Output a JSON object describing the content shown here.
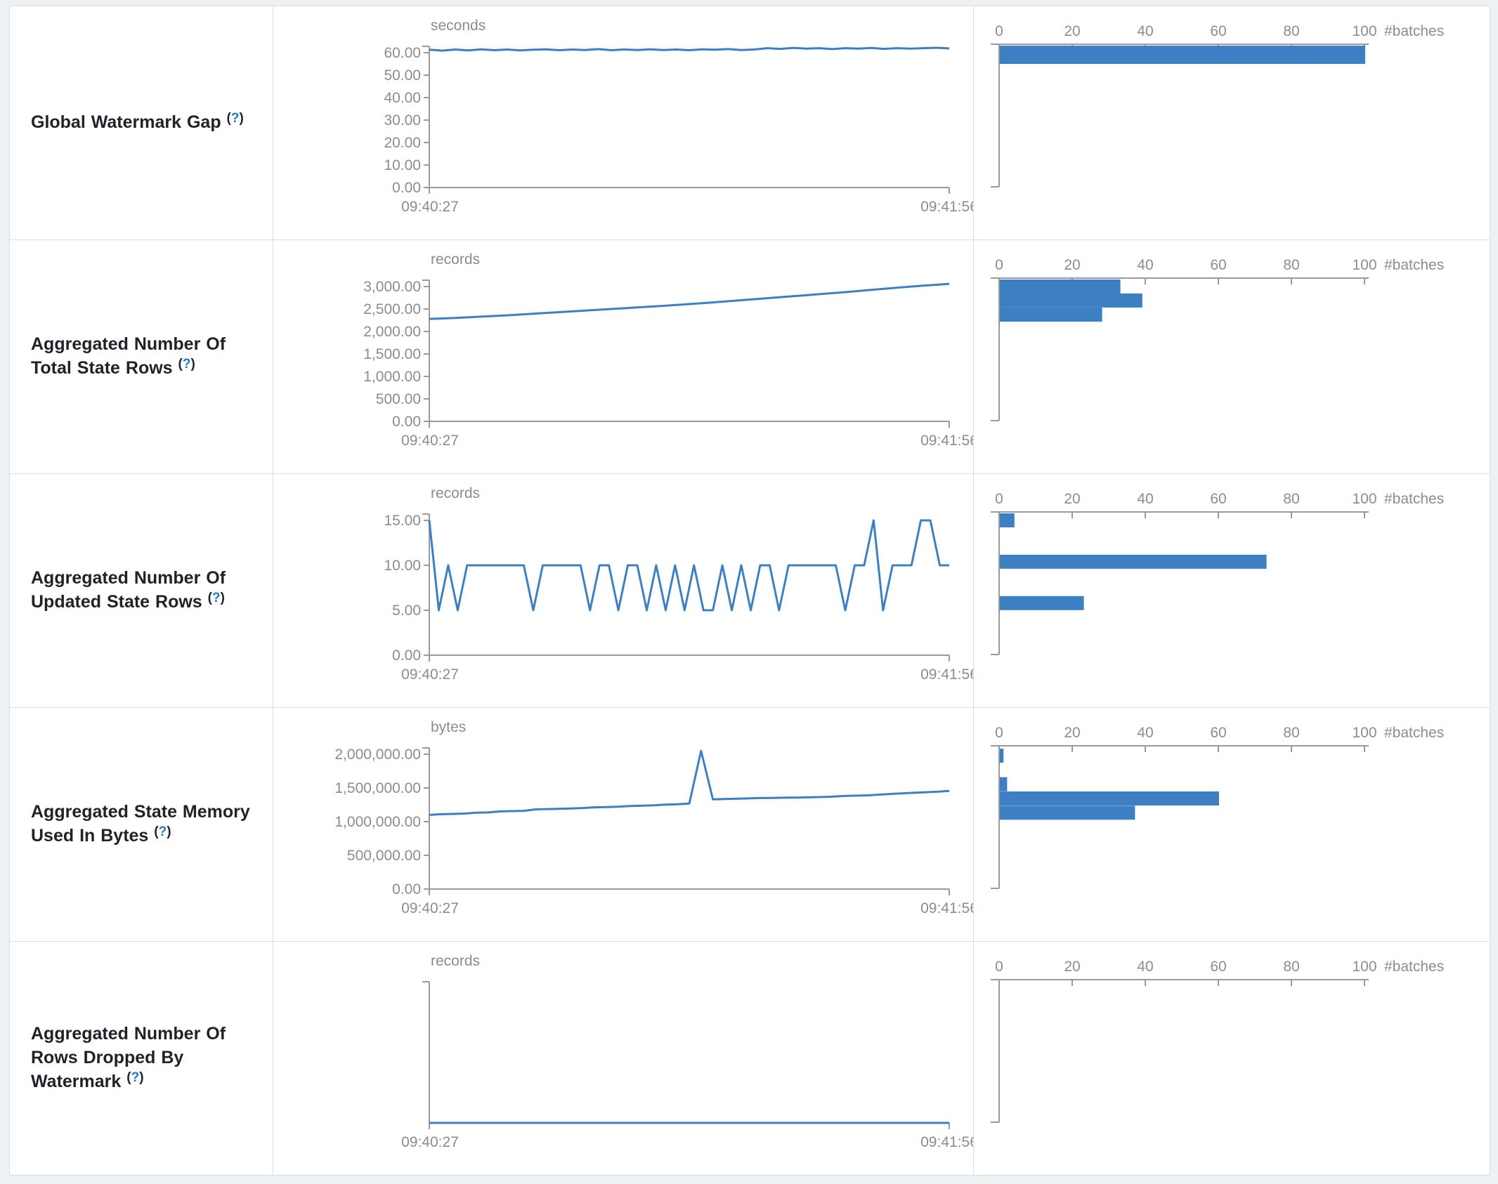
{
  "page": {
    "accent_blue": "#3c80c3",
    "axis_grey": "#9a9a9a",
    "text_grey": "#8c8c90",
    "label_color": "#1f2328",
    "help_color": "#2079c7",
    "border_color": "#d9dde1",
    "cell_bg": "#ffffff",
    "outer_bg": "#eef1f4"
  },
  "x_time_labels": [
    "09:40:27",
    "09:41:56"
  ],
  "histogram_axis": {
    "tick_labels": [
      "0",
      "20",
      "40",
      "60",
      "80",
      "100"
    ],
    "axis_label": "#batches",
    "max": 100
  },
  "chart_data": [
    {
      "type": "line+histogram",
      "title": "Global Watermark Gap",
      "help": {
        "open": "(",
        "q": "?",
        "close": ")"
      },
      "unit": "seconds",
      "y_tick_labels": [
        "60.00",
        "50.00",
        "40.00",
        "30.00",
        "20.00",
        "10.00",
        "0.00"
      ],
      "y_top_value": 60,
      "x_range": [
        "09:40:27",
        "09:41:56"
      ],
      "line_values": [
        61.3,
        60.9,
        61.4,
        61.0,
        61.5,
        61.1,
        61.4,
        61.0,
        61.3,
        61.5,
        61.1,
        61.4,
        61.2,
        61.6,
        61.1,
        61.4,
        61.2,
        61.5,
        61.2,
        61.4,
        61.1,
        61.5,
        61.3,
        61.6,
        61.2,
        61.4,
        62.0,
        61.7,
        62.1,
        61.8,
        62.0,
        61.6,
        62.0,
        61.8,
        62.1,
        61.7,
        62.0,
        61.8,
        62.0,
        62.2,
        61.9
      ],
      "histogram_bars": [
        {
          "count": 100,
          "bin_top_frac": 0.01,
          "bin_h": 26
        }
      ]
    },
    {
      "type": "line+histogram",
      "title": "Aggregated Number Of Total State Rows",
      "help": {
        "open": "(",
        "q": "?",
        "close": ")"
      },
      "unit": "records",
      "y_tick_labels": [
        "3,000.00",
        "2,500.00",
        "2,000.00",
        "1,500.00",
        "1,000.00",
        "500.00",
        "0.00"
      ],
      "y_top_value": 3000,
      "x_range": [
        "09:40:27",
        "09:41:56"
      ],
      "line_values": [
        2280,
        2300,
        2330,
        2360,
        2395,
        2430,
        2465,
        2500,
        2535,
        2570,
        2610,
        2650,
        2695,
        2740,
        2785,
        2830,
        2875,
        2925,
        2975,
        3020,
        3060
      ],
      "histogram_bars": [
        {
          "count": 33,
          "bin_top_frac": 0.01,
          "bin_h": 20
        },
        {
          "count": 39,
          "bin_top_frac": 0.108,
          "bin_h": 20
        },
        {
          "count": 28,
          "bin_top_frac": 0.207,
          "bin_h": 20
        }
      ]
    },
    {
      "type": "line+histogram",
      "title": "Aggregated Number Of Updated State Rows",
      "help": {
        "open": "(",
        "q": "?",
        "close": ")"
      },
      "unit": "records",
      "y_tick_labels": [
        "15.00",
        "10.00",
        "5.00",
        "0.00"
      ],
      "y_top_value": 15,
      "x_range": [
        "09:40:27",
        "09:41:56"
      ],
      "line_values": [
        15,
        5,
        10,
        5,
        10,
        10,
        10,
        10,
        10,
        10,
        10,
        5,
        10,
        10,
        10,
        10,
        10,
        5,
        10,
        10,
        5,
        10,
        10,
        5,
        10,
        5,
        10,
        5,
        10,
        5,
        5,
        10,
        5,
        10,
        5,
        10,
        10,
        5,
        10,
        10,
        10,
        10,
        10,
        10,
        5,
        10,
        10,
        15,
        5,
        10,
        10,
        10,
        15,
        15,
        10,
        10
      ],
      "histogram_bars": [
        {
          "count": 4,
          "bin_top_frac": 0.01,
          "bin_h": 20
        },
        {
          "count": 73,
          "bin_top_frac": 0.3,
          "bin_h": 20
        },
        {
          "count": 23,
          "bin_top_frac": 0.59,
          "bin_h": 20
        }
      ]
    },
    {
      "type": "line+histogram",
      "title": "Aggregated State Memory Used In Bytes",
      "help": {
        "open": "(",
        "q": "?",
        "close": ")"
      },
      "unit": "bytes",
      "y_tick_labels": [
        "2,000,000.00",
        "1,500,000.00",
        "1,000,000.00",
        "500,000.00",
        "0.00"
      ],
      "y_top_value": 2000000,
      "x_range": [
        "09:40:27",
        "09:41:56"
      ],
      "line_values": [
        1100000,
        1110000,
        1115000,
        1120000,
        1132000,
        1136000,
        1152000,
        1156000,
        1160000,
        1182000,
        1186000,
        1190000,
        1196000,
        1202000,
        1212000,
        1216000,
        1222000,
        1232000,
        1236000,
        1242000,
        1252000,
        1258000,
        1268000,
        2050000,
        1330000,
        1335000,
        1340000,
        1345000,
        1350000,
        1352000,
        1355000,
        1356000,
        1360000,
        1365000,
        1370000,
        1380000,
        1385000,
        1390000,
        1400000,
        1410000,
        1420000,
        1428000,
        1436000,
        1444000,
        1455000
      ],
      "histogram_bars": [
        {
          "count": 1,
          "bin_top_frac": 0.02,
          "bin_h": 20
        },
        {
          "count": 2,
          "bin_top_frac": 0.22,
          "bin_h": 20
        },
        {
          "count": 60,
          "bin_top_frac": 0.32,
          "bin_h": 20
        },
        {
          "count": 37,
          "bin_top_frac": 0.42,
          "bin_h": 20
        }
      ]
    },
    {
      "type": "line+histogram",
      "title": "Aggregated Number Of Rows Dropped By Watermark",
      "help": {
        "open": "(",
        "q": "?",
        "close": ")"
      },
      "unit": "records",
      "y_tick_labels": [],
      "y_top_value": 1,
      "x_range": [
        "09:40:27",
        "09:41:56"
      ],
      "line_values": [
        0,
        0,
        0,
        0,
        0,
        0,
        0,
        0,
        0,
        0
      ],
      "histogram_bars": []
    }
  ]
}
